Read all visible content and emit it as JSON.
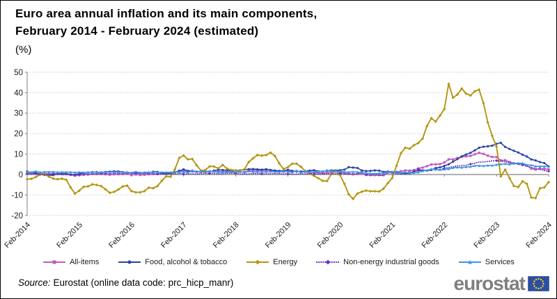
{
  "title": {
    "line1": "Euro area annual inflation and its main components,",
    "line2": "February 2014 - February 2024 (estimated)",
    "unit": "(%)"
  },
  "source": {
    "prefix": "Source:",
    "text": "Eurostat (online data code: prc_hicp_manr)"
  },
  "logo": {
    "text": "eurostat",
    "flag_blue": "#2B4FA2",
    "star_yellow": "#FFD617",
    "text_gray": "#7F7F7F"
  },
  "chart_data": {
    "type": "line",
    "title": "Euro area annual inflation and its main components, February 2014 - February 2024 (estimated)",
    "ylabel": "(%)",
    "xlabel": "",
    "ylim": [
      -20,
      50
    ],
    "y_ticks": [
      50,
      40,
      30,
      20,
      10,
      0,
      -10,
      -20
    ],
    "x_tick_labels": [
      "Feb-2014",
      "Feb-2015",
      "Feb-2016",
      "Feb-2017",
      "Feb-2018",
      "Feb-2019",
      "Feb-2020",
      "Feb-2021",
      "Feb-2022",
      "Feb-2023",
      "Feb-2024"
    ],
    "x_unit": "monthly, Feb 2014 to Feb 2024",
    "grid": "horizontal dotted",
    "legend_position": "bottom",
    "axis_color": "#808080",
    "grid_color": "#C9C9C9",
    "series": [
      {
        "name": "All-items",
        "color": "#C35ABF",
        "style": "solid",
        "marker": "square",
        "values": [
          0.7,
          0.5,
          0.7,
          0.5,
          0.5,
          0.4,
          0.4,
          0.3,
          0.4,
          0.3,
          -0.2,
          -0.6,
          -0.3,
          -0.1,
          0.0,
          0.3,
          0.2,
          0.2,
          0.1,
          -0.1,
          0.1,
          0.1,
          0.2,
          0.3,
          -0.2,
          0.0,
          -0.2,
          -0.1,
          0.1,
          0.2,
          0.2,
          0.4,
          0.5,
          0.6,
          1.1,
          1.8,
          2.0,
          1.5,
          1.9,
          1.4,
          1.3,
          1.3,
          1.5,
          1.5,
          1.4,
          1.5,
          1.4,
          1.3,
          1.1,
          1.3,
          1.2,
          1.9,
          2.0,
          2.1,
          2.0,
          2.1,
          2.2,
          1.9,
          1.5,
          1.4,
          1.5,
          1.4,
          1.7,
          1.2,
          1.3,
          1.0,
          1.0,
          0.8,
          0.7,
          1.0,
          1.3,
          1.4,
          1.2,
          0.7,
          0.3,
          0.1,
          0.3,
          0.4,
          -0.2,
          -0.3,
          -0.3,
          -0.3,
          -0.3,
          0.9,
          0.9,
          1.3,
          1.6,
          2.0,
          1.9,
          2.2,
          3.0,
          3.4,
          4.1,
          4.9,
          5.0,
          5.1,
          5.9,
          7.4,
          7.4,
          8.1,
          8.6,
          8.9,
          9.1,
          9.9,
          10.6,
          10.1,
          9.2,
          8.6,
          8.5,
          6.9,
          7.0,
          6.1,
          5.5,
          5.3,
          5.2,
          4.3,
          2.9,
          2.4,
          2.9,
          2.8,
          2.6
        ]
      },
      {
        "name": "Food, alcohol & tobacco",
        "color": "#2A41A5",
        "style": "solid",
        "marker": "circle",
        "values": [
          1.5,
          1.0,
          0.7,
          0.1,
          -0.2,
          -0.3,
          -0.3,
          0.3,
          0.5,
          0.5,
          0.0,
          -0.1,
          0.5,
          0.6,
          1.0,
          1.2,
          1.2,
          0.9,
          1.3,
          1.4,
          1.6,
          1.5,
          1.2,
          1.0,
          0.7,
          0.8,
          0.8,
          0.9,
          0.9,
          1.4,
          1.3,
          0.7,
          0.4,
          0.7,
          1.2,
          1.8,
          2.5,
          1.8,
          1.5,
          1.4,
          1.4,
          1.4,
          1.4,
          1.9,
          2.3,
          2.2,
          2.1,
          1.9,
          1.0,
          2.1,
          2.4,
          2.6,
          2.7,
          2.5,
          2.4,
          2.6,
          2.2,
          1.9,
          1.8,
          1.8,
          2.3,
          1.8,
          1.5,
          1.5,
          1.6,
          1.9,
          2.1,
          1.6,
          1.5,
          1.9,
          2.0,
          2.1,
          2.1,
          2.4,
          3.6,
          3.4,
          3.2,
          2.0,
          1.7,
          1.8,
          2.0,
          1.9,
          1.3,
          1.5,
          1.3,
          1.1,
          0.6,
          0.5,
          0.5,
          1.6,
          2.0,
          2.0,
          1.9,
          2.2,
          3.2,
          3.5,
          4.2,
          5.0,
          6.3,
          7.5,
          8.9,
          9.8,
          10.6,
          11.8,
          13.1,
          13.6,
          13.8,
          14.1,
          15.0,
          15.5,
          13.5,
          12.5,
          11.6,
          10.8,
          9.7,
          8.8,
          7.4,
          6.9,
          6.1,
          5.6,
          4.0
        ]
      },
      {
        "name": "Energy",
        "color": "#B5950F",
        "style": "solid",
        "marker": "diamond",
        "values": [
          -2.3,
          -2.1,
          -1.2,
          0.0,
          0.1,
          -1.0,
          -2.0,
          -2.3,
          -2.0,
          -2.6,
          -6.3,
          -9.3,
          -7.9,
          -6.0,
          -5.8,
          -4.8,
          -5.1,
          -5.6,
          -7.2,
          -8.9,
          -8.5,
          -7.3,
          -5.8,
          -5.4,
          -8.1,
          -8.7,
          -8.7,
          -8.1,
          -6.4,
          -6.7,
          -5.6,
          -3.0,
          -0.9,
          -1.1,
          2.6,
          8.1,
          9.3,
          7.4,
          7.6,
          4.5,
          1.9,
          2.2,
          4.0,
          3.9,
          3.0,
          4.7,
          2.9,
          2.2,
          2.1,
          2.0,
          2.6,
          6.1,
          8.0,
          9.5,
          9.2,
          9.5,
          10.7,
          9.1,
          5.5,
          2.7,
          3.6,
          5.3,
          5.3,
          3.8,
          1.7,
          0.5,
          -0.6,
          -1.8,
          -3.1,
          -3.2,
          0.2,
          1.9,
          -0.3,
          -4.5,
          -9.7,
          -11.9,
          -9.3,
          -8.4,
          -7.8,
          -8.2,
          -8.2,
          -8.3,
          -6.9,
          -4.2,
          -1.7,
          4.3,
          10.4,
          13.1,
          12.6,
          14.3,
          15.4,
          17.6,
          23.7,
          27.5,
          25.9,
          28.8,
          32.0,
          44.3,
          37.5,
          39.1,
          42.0,
          39.6,
          38.6,
          40.7,
          41.5,
          34.9,
          25.5,
          18.9,
          13.7,
          -0.9,
          2.4,
          -1.8,
          -5.6,
          -6.1,
          -3.3,
          -4.6,
          -11.2,
          -11.5,
          -6.7,
          -6.3,
          -3.7
        ]
      },
      {
        "name": "Non-energy industrial goods",
        "color": "#6732BA",
        "style": "dotted",
        "marker": "diamond",
        "values": [
          0.4,
          0.2,
          0.1,
          0.0,
          -0.1,
          0.0,
          0.3,
          0.2,
          -0.1,
          -0.1,
          0.0,
          -0.1,
          -0.1,
          0.0,
          0.1,
          0.2,
          0.3,
          0.4,
          0.6,
          0.3,
          0.6,
          0.5,
          0.5,
          0.7,
          0.7,
          0.5,
          0.5,
          0.5,
          0.4,
          0.4,
          0.3,
          0.3,
          0.3,
          0.3,
          0.3,
          0.5,
          0.2,
          0.3,
          0.3,
          0.3,
          0.4,
          0.5,
          0.5,
          0.5,
          0.4,
          0.4,
          0.6,
          0.6,
          0.6,
          0.2,
          0.3,
          0.3,
          0.4,
          0.5,
          0.3,
          0.3,
          0.4,
          0.4,
          0.4,
          0.3,
          0.3,
          0.1,
          0.2,
          0.3,
          0.3,
          0.4,
          0.3,
          0.2,
          0.3,
          0.4,
          0.5,
          0.3,
          0.5,
          0.5,
          0.3,
          0.2,
          0.2,
          1.6,
          -0.1,
          -0.3,
          -0.1,
          -0.3,
          -0.5,
          1.5,
          1.0,
          0.3,
          0.4,
          0.7,
          1.2,
          0.7,
          2.6,
          2.1,
          2.0,
          2.4,
          2.9,
          2.1,
          3.1,
          3.4,
          3.8,
          4.2,
          4.3,
          4.5,
          5.1,
          5.5,
          6.1,
          6.1,
          6.4,
          6.7,
          6.8,
          6.6,
          6.2,
          5.8,
          5.5,
          5.0,
          4.7,
          4.1,
          3.5,
          2.9,
          2.5,
          2.0,
          1.6
        ]
      },
      {
        "name": "Services",
        "color": "#3E96E2",
        "style": "solid",
        "marker": "triangle",
        "values": [
          1.3,
          1.1,
          1.6,
          1.1,
          1.3,
          1.3,
          1.3,
          1.1,
          1.2,
          1.2,
          1.2,
          1.0,
          1.2,
          1.0,
          1.0,
          1.3,
          1.1,
          1.2,
          1.2,
          1.2,
          1.3,
          1.2,
          1.1,
          1.2,
          0.9,
          1.4,
          0.9,
          1.0,
          1.1,
          1.2,
          1.1,
          1.1,
          1.1,
          1.1,
          1.3,
          1.2,
          1.3,
          1.0,
          1.8,
          1.3,
          1.6,
          1.5,
          1.6,
          1.5,
          1.2,
          1.2,
          1.2,
          1.2,
          1.3,
          1.5,
          1.0,
          1.6,
          1.3,
          1.4,
          1.3,
          1.3,
          1.5,
          1.3,
          1.3,
          1.6,
          1.4,
          1.1,
          1.9,
          1.0,
          1.6,
          1.2,
          1.3,
          1.5,
          1.5,
          1.9,
          1.8,
          1.5,
          1.6,
          1.3,
          1.2,
          1.3,
          1.2,
          0.9,
          0.7,
          0.5,
          0.4,
          0.6,
          0.7,
          1.4,
          1.2,
          1.3,
          0.9,
          1.1,
          0.7,
          0.9,
          1.1,
          1.7,
          2.1,
          2.7,
          2.4,
          2.3,
          2.5,
          2.7,
          3.3,
          3.5,
          3.4,
          3.7,
          3.8,
          4.3,
          4.3,
          4.2,
          4.4,
          4.4,
          4.8,
          5.1,
          5.2,
          5.0,
          5.4,
          5.6,
          5.5,
          4.7,
          4.6,
          4.0,
          4.0,
          4.0,
          3.9
        ]
      }
    ]
  }
}
